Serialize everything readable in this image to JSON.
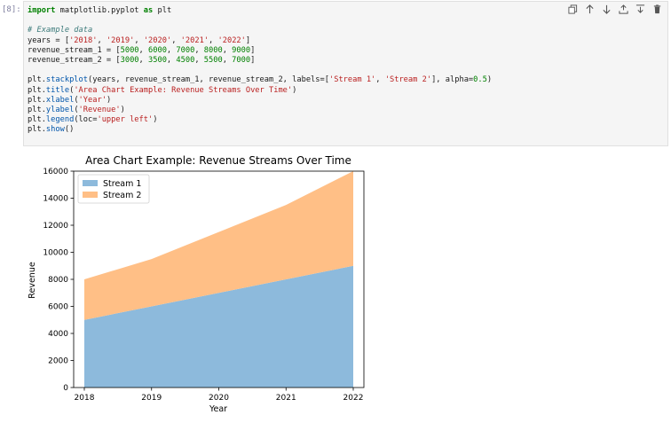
{
  "cell": {
    "prompt": "[8]:",
    "code_lines": [
      [
        {
          "t": "import",
          "c": "kw"
        },
        {
          "t": " matplotlib.pyplot ",
          "c": ""
        },
        {
          "t": "as",
          "c": "kw"
        },
        {
          "t": " plt",
          "c": ""
        }
      ],
      [],
      [
        {
          "t": "# Example data",
          "c": "cm"
        }
      ],
      [
        {
          "t": "years = [",
          "c": ""
        },
        {
          "t": "'2018'",
          "c": "str"
        },
        {
          "t": ", ",
          "c": ""
        },
        {
          "t": "'2019'",
          "c": "str"
        },
        {
          "t": ", ",
          "c": ""
        },
        {
          "t": "'2020'",
          "c": "str"
        },
        {
          "t": ", ",
          "c": ""
        },
        {
          "t": "'2021'",
          "c": "str"
        },
        {
          "t": ", ",
          "c": ""
        },
        {
          "t": "'2022'",
          "c": "str"
        },
        {
          "t": "]",
          "c": ""
        }
      ],
      [
        {
          "t": "revenue_stream_1 = [",
          "c": ""
        },
        {
          "t": "5000",
          "c": "num"
        },
        {
          "t": ", ",
          "c": ""
        },
        {
          "t": "6000",
          "c": "num"
        },
        {
          "t": ", ",
          "c": ""
        },
        {
          "t": "7000",
          "c": "num"
        },
        {
          "t": ", ",
          "c": ""
        },
        {
          "t": "8000",
          "c": "num"
        },
        {
          "t": ", ",
          "c": ""
        },
        {
          "t": "9000",
          "c": "num"
        },
        {
          "t": "]",
          "c": ""
        }
      ],
      [
        {
          "t": "revenue_stream_2 = [",
          "c": ""
        },
        {
          "t": "3000",
          "c": "num"
        },
        {
          "t": ", ",
          "c": ""
        },
        {
          "t": "3500",
          "c": "num"
        },
        {
          "t": ", ",
          "c": ""
        },
        {
          "t": "4500",
          "c": "num"
        },
        {
          "t": ", ",
          "c": ""
        },
        {
          "t": "5500",
          "c": "num"
        },
        {
          "t": ", ",
          "c": ""
        },
        {
          "t": "7000",
          "c": "num"
        },
        {
          "t": "]",
          "c": ""
        }
      ],
      [],
      [
        {
          "t": "plt.",
          "c": ""
        },
        {
          "t": "stackplot",
          "c": "fn"
        },
        {
          "t": "(years, revenue_stream_1, revenue_stream_2, labels=[",
          "c": ""
        },
        {
          "t": "'Stream 1'",
          "c": "str"
        },
        {
          "t": ", ",
          "c": ""
        },
        {
          "t": "'Stream 2'",
          "c": "str"
        },
        {
          "t": "], alpha=",
          "c": ""
        },
        {
          "t": "0.5",
          "c": "num"
        },
        {
          "t": ")",
          "c": ""
        }
      ],
      [
        {
          "t": "plt.",
          "c": ""
        },
        {
          "t": "title",
          "c": "fn"
        },
        {
          "t": "(",
          "c": ""
        },
        {
          "t": "'Area Chart Example: Revenue Streams Over Time'",
          "c": "str"
        },
        {
          "t": ")",
          "c": ""
        }
      ],
      [
        {
          "t": "plt.",
          "c": ""
        },
        {
          "t": "xlabel",
          "c": "fn"
        },
        {
          "t": "(",
          "c": ""
        },
        {
          "t": "'Year'",
          "c": "str"
        },
        {
          "t": ")",
          "c": ""
        }
      ],
      [
        {
          "t": "plt.",
          "c": ""
        },
        {
          "t": "ylabel",
          "c": "fn"
        },
        {
          "t": "(",
          "c": ""
        },
        {
          "t": "'Revenue'",
          "c": "str"
        },
        {
          "t": ")",
          "c": ""
        }
      ],
      [
        {
          "t": "plt.",
          "c": ""
        },
        {
          "t": "legend",
          "c": "fn"
        },
        {
          "t": "(loc=",
          "c": ""
        },
        {
          "t": "'upper left'",
          "c": "str"
        },
        {
          "t": ")",
          "c": ""
        }
      ],
      [
        {
          "t": "plt.",
          "c": ""
        },
        {
          "t": "show",
          "c": "fn"
        },
        {
          "t": "()",
          "c": ""
        }
      ]
    ],
    "toolbar": [
      {
        "name": "copy-icon",
        "label": "Copy"
      },
      {
        "name": "arrow-up-icon",
        "label": "Move up"
      },
      {
        "name": "arrow-down-icon",
        "label": "Move down"
      },
      {
        "name": "insert-above-icon",
        "label": "Insert above"
      },
      {
        "name": "insert-below-icon",
        "label": "Insert below"
      },
      {
        "name": "trash-icon",
        "label": "Delete"
      }
    ]
  },
  "colors": {
    "stream_1": "#8dbadc",
    "stream_2": "#ffbf86"
  },
  "chart_data": {
    "type": "area",
    "stacked": true,
    "title": "Area Chart Example: Revenue Streams Over Time",
    "xlabel": "Year",
    "ylabel": "Revenue",
    "categories": [
      "2018",
      "2019",
      "2020",
      "2021",
      "2022"
    ],
    "series": [
      {
        "name": "Stream 1",
        "values": [
          5000,
          6000,
          7000,
          8000,
          9000
        ]
      },
      {
        "name": "Stream 2",
        "values": [
          3000,
          3500,
          4500,
          5500,
          7000
        ]
      }
    ],
    "ylim": [
      0,
      16000
    ],
    "yticks": [
      0,
      2000,
      4000,
      6000,
      8000,
      10000,
      12000,
      14000,
      16000
    ],
    "grid": false,
    "legend": "upper-left"
  }
}
